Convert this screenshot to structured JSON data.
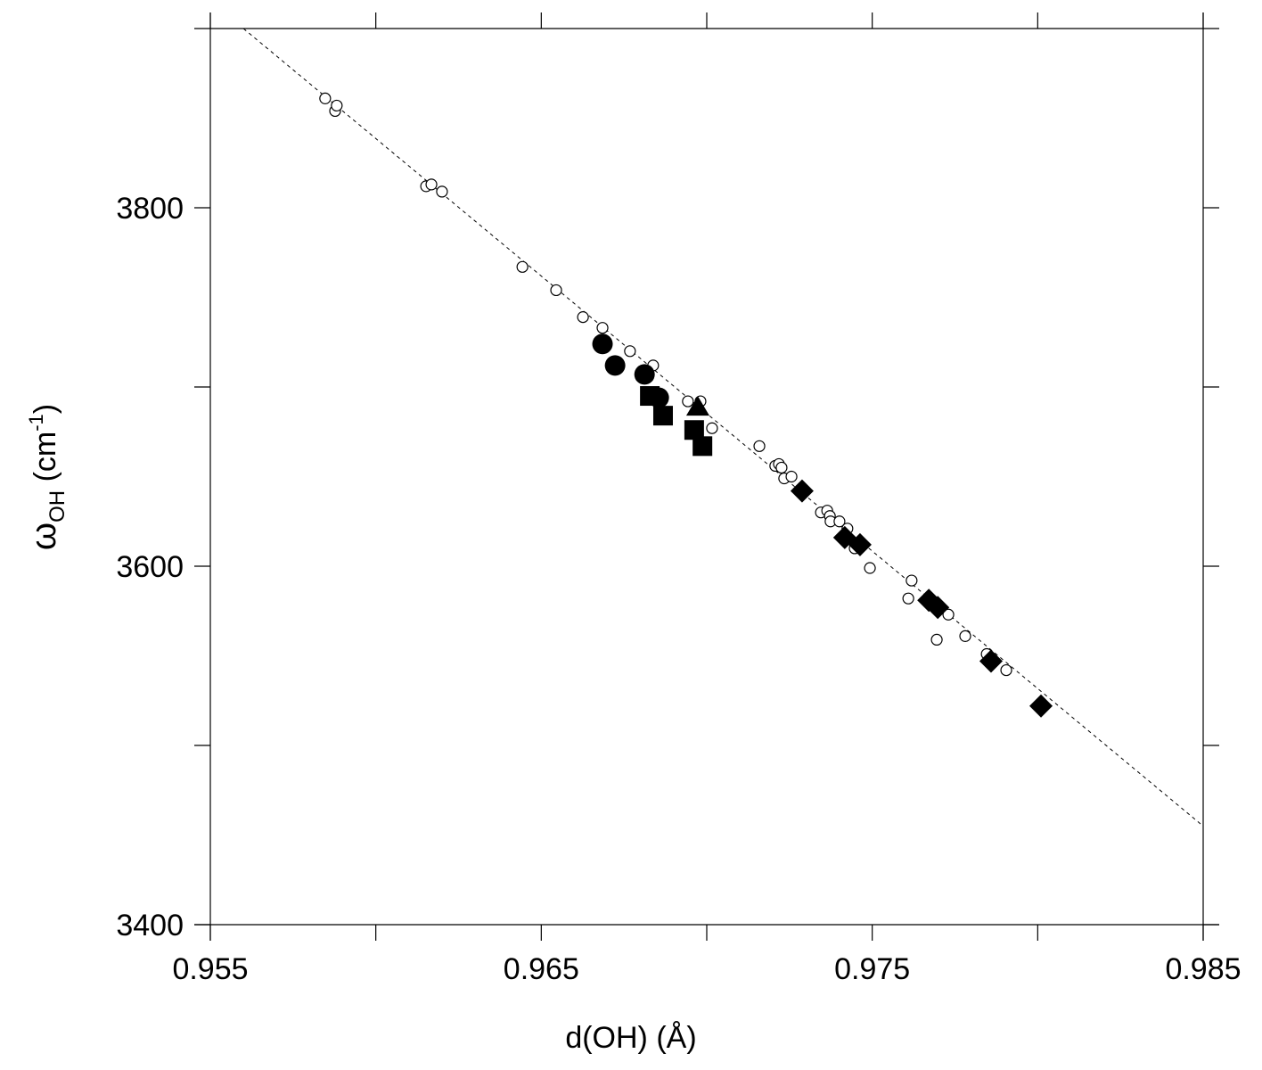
{
  "chart_data": {
    "type": "scatter",
    "xlabel": "d(OH) (Å)",
    "ylabel": [
      "ω",
      "OH",
      " (cm",
      "-1",
      ")"
    ],
    "xlim": [
      0.955,
      0.985
    ],
    "ylim": [
      3400,
      3900
    ],
    "xticks": [
      0.955,
      0.965,
      0.975,
      0.985
    ],
    "xminorticks": [
      0.96,
      0.97,
      0.98
    ],
    "yticks": [
      3400,
      3600,
      3800
    ],
    "yminorticks": [
      3500,
      3700
    ],
    "series": [
      {
        "marker": "circle-open",
        "color": "#000000",
        "x": [
          0.95847,
          0.95877,
          0.95882,
          0.96152,
          0.96168,
          0.962,
          0.96443,
          0.96545,
          0.96626,
          0.96685,
          0.96768,
          0.96838,
          0.96943,
          0.96981,
          0.97016,
          0.97159,
          0.97207,
          0.97218,
          0.97226,
          0.97234,
          0.97256,
          0.97345,
          0.97364,
          0.97372,
          0.97374,
          0.97401,
          0.97425,
          0.97447,
          0.97493,
          0.97609,
          0.97619,
          0.97695,
          0.9773,
          0.97781,
          0.97846,
          0.97905
        ],
        "values": [
          3861,
          3854,
          3857,
          3812,
          3813,
          3809,
          3767,
          3754,
          3739,
          3733,
          3720,
          3712,
          3692,
          3692,
          3677,
          3667,
          3656,
          3657,
          3655,
          3649,
          3650,
          3630,
          3631,
          3628,
          3625,
          3625,
          3621,
          3610,
          3599,
          3582,
          3592,
          3559,
          3573,
          3561,
          3551,
          3542
        ]
      },
      {
        "marker": "circle",
        "color": "#000000",
        "x": [
          0.96685,
          0.96723,
          0.96812,
          0.96855
        ],
        "values": [
          3724,
          3712,
          3707,
          3694
        ]
      },
      {
        "marker": "square",
        "color": "#000000",
        "x": [
          0.96828,
          0.96868,
          0.96962,
          0.96987
        ],
        "values": [
          3695,
          3684,
          3676,
          3667
        ]
      },
      {
        "marker": "triangle",
        "color": "#000000",
        "x": [
          0.96973
        ],
        "values": [
          3689
        ]
      },
      {
        "marker": "diamond",
        "color": "#000000",
        "x": [
          0.97288,
          0.97417,
          0.97463,
          0.97671,
          0.97698,
          0.97859,
          0.9801
        ],
        "values": [
          3642,
          3616,
          3612,
          3581,
          3577,
          3547,
          3522
        ]
      },
      {
        "line_style": "dashed",
        "color": "#000000",
        "x": [
          0.956,
          0.985
        ],
        "values": [
          3900,
          3455
        ]
      }
    ]
  }
}
